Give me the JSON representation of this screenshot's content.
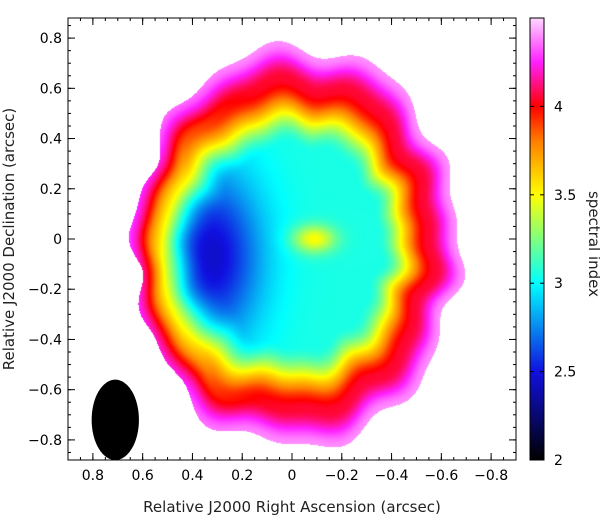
{
  "chart_data": {
    "type": "heatmap",
    "xlabel": "Relative J2000 Right Ascension (arcsec)",
    "ylabel": "Relative J2000 Declination (arcsec)",
    "colorbar_label": "spectral index",
    "xlim": [
      0.9,
      -0.9
    ],
    "ylim": [
      -0.88,
      0.88
    ],
    "x_ticks": [
      {
        "v": 0.8,
        "label": "0.8"
      },
      {
        "v": 0.6,
        "label": "0.6"
      },
      {
        "v": 0.4,
        "label": "0.4"
      },
      {
        "v": 0.2,
        "label": "0.2"
      },
      {
        "v": 0,
        "label": "0"
      },
      {
        "v": -0.2,
        "label": "−0.2"
      },
      {
        "v": -0.4,
        "label": "−0.4"
      },
      {
        "v": -0.6,
        "label": "−0.6"
      },
      {
        "v": -0.8,
        "label": "−0.8"
      }
    ],
    "y_ticks": [
      {
        "v": 0.8,
        "label": "0.8"
      },
      {
        "v": 0.6,
        "label": "0.6"
      },
      {
        "v": 0.4,
        "label": "0.4"
      },
      {
        "v": 0.2,
        "label": "0.2"
      },
      {
        "v": 0,
        "label": "0"
      },
      {
        "v": -0.2,
        "label": "−0.2"
      },
      {
        "v": -0.4,
        "label": "−0.4"
      },
      {
        "v": -0.6,
        "label": "−0.6"
      },
      {
        "v": -0.8,
        "label": "−0.8"
      }
    ],
    "colorbar": {
      "range": [
        2,
        4.5
      ],
      "ticks": [
        {
          "v": 2,
          "label": "2"
        },
        {
          "v": 2.5,
          "label": "2.5"
        },
        {
          "v": 3,
          "label": "3"
        },
        {
          "v": 3.5,
          "label": "3.5"
        },
        {
          "v": 4,
          "label": "4"
        }
      ],
      "colormap": [
        [
          0,
          "#000000"
        ],
        [
          0.2,
          "#1010e0"
        ],
        [
          0.4,
          "#00ffff"
        ],
        [
          0.6,
          "#ffff00"
        ],
        [
          0.72,
          "#ff8000"
        ],
        [
          0.8,
          "#ff0000"
        ],
        [
          0.9,
          "#ff20ff"
        ],
        [
          1,
          "#ffd8ff"
        ]
      ]
    },
    "map": {
      "center": [
        -0.02,
        -0.03
      ],
      "semi_axes": [
        0.65,
        0.8
      ],
      "edge_value": 4.4,
      "rim_value": 4.05,
      "interior_value": 3.05,
      "hole_center": [
        0.32,
        -0.07
      ],
      "hole_value": 2.42,
      "core_center": [
        -0.09,
        0.0
      ],
      "core_value": 3.5
    },
    "beam": {
      "center": [
        0.71,
        -0.72
      ],
      "major": 0.16,
      "minor": 0.095
    }
  }
}
